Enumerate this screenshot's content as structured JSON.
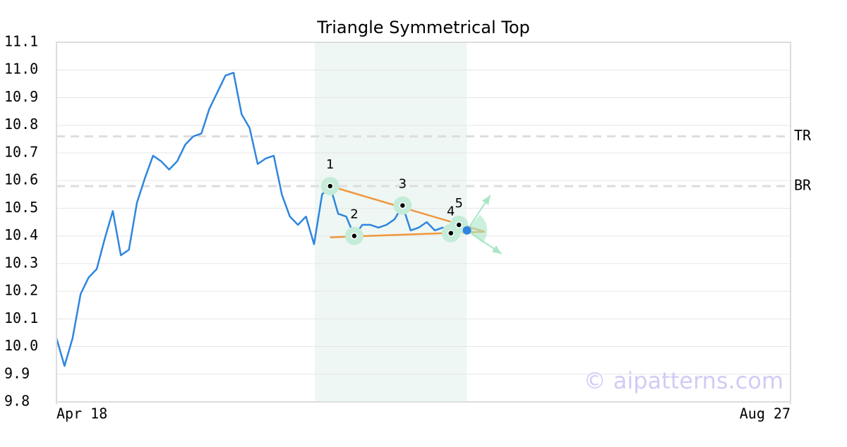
{
  "chart_data": {
    "type": "line",
    "title": "Triangle Symmetrical Top",
    "values": [
      10.03,
      9.93,
      10.03,
      10.19,
      10.25,
      10.28,
      10.39,
      10.49,
      10.33,
      10.35,
      10.52,
      10.61,
      10.69,
      10.67,
      10.64,
      10.67,
      10.73,
      10.76,
      10.77,
      10.86,
      10.92,
      10.98,
      10.99,
      10.84,
      10.79,
      10.66,
      10.68,
      10.69,
      10.55,
      10.47,
      10.44,
      10.47,
      10.37,
      10.55,
      10.58,
      10.48,
      10.47,
      10.4,
      10.44,
      10.44,
      10.43,
      10.44,
      10.46,
      10.51,
      10.42,
      10.43,
      10.45,
      10.42,
      10.43,
      10.41,
      10.44,
      10.42
    ],
    "color": "#2e86de",
    "xlim": [
      0,
      91.2
    ],
    "xticks": [
      {
        "value": 0,
        "label": "Apr 18"
      },
      {
        "value": 91.2,
        "label": "Aug 27"
      }
    ],
    "ylim": [
      9.8,
      11.1
    ],
    "yticks": [
      9.8,
      9.9,
      {
        "value": 10,
        "label": "10.0"
      },
      10.1,
      10.2,
      10.3,
      10.4,
      10.5,
      10.6,
      10.7,
      10.8,
      10.9,
      {
        "value": 11,
        "label": "11.0"
      },
      11.1
    ],
    "grid": true,
    "highlight": [
      32.1,
      51
    ],
    "levels": [
      {
        "label": "TR",
        "value": 10.76
      },
      {
        "label": "BR",
        "value": 10.58
      }
    ],
    "pivots": [
      {
        "label": "1",
        "x": 34,
        "value": 10.58
      },
      {
        "label": "2",
        "x": 37,
        "value": 10.4
      },
      {
        "label": "3",
        "x": 43,
        "value": 10.51
      },
      {
        "label": "4",
        "x": 49,
        "value": 10.41
      },
      {
        "label": "5",
        "x": 50,
        "value": 10.44
      }
    ],
    "trendlines": [
      {
        "x": [
          34,
          53.2
        ],
        "values": [
          10.58,
          10.415
        ]
      },
      {
        "x": [
          34,
          53.2
        ],
        "values": [
          10.395,
          10.415
        ]
      }
    ],
    "breakout": {
      "x": 51,
      "value": 10.42
    },
    "arrows": [
      {
        "x": 53.9,
        "value": 10.547
      },
      {
        "x": 55.3,
        "value": 10.335
      }
    ],
    "watermark": "© aipatterns.com"
  }
}
